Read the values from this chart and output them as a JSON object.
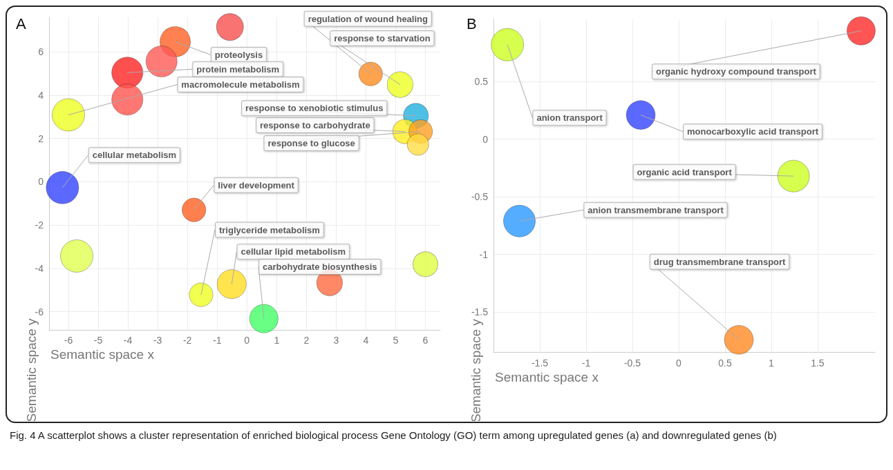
{
  "chart_data": [
    {
      "type": "bubble",
      "title": "A",
      "xlabel": "Semantic space x",
      "ylabel": "Semantic space y",
      "x": [
        -0.57,
        -2.41,
        -2.87,
        -4.02,
        -4.02,
        -6.0,
        4.16,
        5.15,
        5.68,
        5.31,
        5.84,
        5.75,
        -6.2,
        -1.78,
        -5.72,
        6.0,
        -1.54,
        -0.51,
        2.78,
        0.57
      ],
      "values": [
        7.15,
        6.47,
        5.56,
        5.04,
        3.8,
        3.09,
        4.98,
        4.49,
        3.05,
        2.32,
        2.32,
        1.72,
        -0.27,
        -1.3,
        -3.43,
        -3.81,
        -5.22,
        -4.73,
        -4.67,
        -6.32
      ],
      "sizes": [
        0.69,
        0.88,
        0.92,
        0.92,
        0.92,
        1,
        0.53,
        0.63,
        0.59,
        0.56,
        0.53,
        0.44,
        1,
        0.53,
        1,
        0.59,
        0.53,
        0.8,
        0.63,
        0.77
      ],
      "colors": [
        "#f85050",
        "#ff6024",
        "#ff5a55",
        "#ff2424",
        "#ff5550",
        "#eeff22",
        "#ff8c22",
        "#eeff22",
        "#22b0e0",
        "#ffee22",
        "#ffa022",
        "#ffdd44",
        "#3344ff",
        "#ff6020",
        "#e0ff50",
        "#e0ff44",
        "#eeff22",
        "#ffdd22",
        "#ff6a40",
        "#44ff66"
      ],
      "marker": "circle",
      "grid": true,
      "xlim": [
        -6.65,
        6.5
      ],
      "xticks": [
        -6,
        -5,
        -4,
        -3,
        -2,
        -1,
        0,
        1,
        2,
        3,
        4,
        5,
        6
      ],
      "ylim": [
        -6.85,
        7.6
      ],
      "yticks": [
        -6,
        -4,
        -2,
        0,
        2,
        4,
        6
      ],
      "annotations": [
        {
          "text": "proteolysis",
          "x": -2.41,
          "y": 6.47
        },
        {
          "text": "protein metabolism",
          "x": -4.02,
          "y": 5.04
        },
        {
          "text": "macromolecule metabolism",
          "x": -6.0,
          "y": 3.09
        },
        {
          "text": "regulation of wound healing",
          "x": 4.16,
          "y": 4.98
        },
        {
          "text": "response to starvation",
          "x": 5.15,
          "y": 4.49
        },
        {
          "text": "response to xenobiotic stimulus",
          "x": 5.68,
          "y": 3.05
        },
        {
          "text": "response to carbohydrate",
          "x": 5.31,
          "y": 2.32
        },
        {
          "text": "response to glucose",
          "x": 5.84,
          "y": 2.32
        },
        {
          "text": "cellular metabolism",
          "x": -6.2,
          "y": -0.27
        },
        {
          "text": "liver development",
          "x": -1.78,
          "y": -1.3
        },
        {
          "text": "triglyceride metabolism",
          "x": -1.54,
          "y": -5.22
        },
        {
          "text": "cellular lipid metabolism",
          "x": -0.51,
          "y": -4.73
        },
        {
          "text": "carbohydrate biosynthesis",
          "x": 0.57,
          "y": -6.32
        },
        "Fig. 4 A scatterplot shows a cluster representation of enriched biological process Gene Ontology (GO) term among upregulated genes (a) and downregulated genes (b)"
      ]
    },
    {
      "type": "bubble",
      "title": "B",
      "xlabel": "Semantic space x",
      "ylabel": "Semantic space y",
      "x": [
        -1.85,
        1.97,
        -0.41,
        1.24,
        -1.72,
        0.65
      ],
      "values": [
        0.82,
        0.94,
        0.21,
        -0.32,
        -0.71,
        -1.74
      ],
      "sizes": [
        1,
        0.76,
        0.79,
        0.96,
        0.96,
        0.79
      ],
      "colors": [
        "#ccff22",
        "#ff2a2a",
        "#3344ff",
        "#ccff22",
        "#2a99ff",
        "#ff8a22"
      ],
      "marker": "circle",
      "grid": true,
      "xlim": [
        -2.0,
        2.12
      ],
      "xticks": [
        -1.5,
        -1,
        -0.5,
        0,
        0.5,
        1,
        1.5
      ],
      "ylim": [
        -1.85,
        1.04
      ],
      "yticks": [
        -1.5,
        -1,
        -0.5,
        0,
        0.5
      ],
      "annotations": [
        {
          "text": "anion transport",
          "x": -1.85,
          "y": 0.82
        },
        {
          "text": "organic hydroxy compound transport",
          "x": 1.97,
          "y": 0.94
        },
        {
          "text": "monocarboxylic acid transport",
          "x": -0.41,
          "y": 0.21
        },
        {
          "text": "organic acid transport",
          "x": 1.24,
          "y": -0.32
        },
        {
          "text": "anion transmembrane transport",
          "x": -1.72,
          "y": -0.71
        },
        {
          "text": "drug transmembrane transport",
          "x": 0.65,
          "y": -1.74
        }
      ]
    }
  ]
}
